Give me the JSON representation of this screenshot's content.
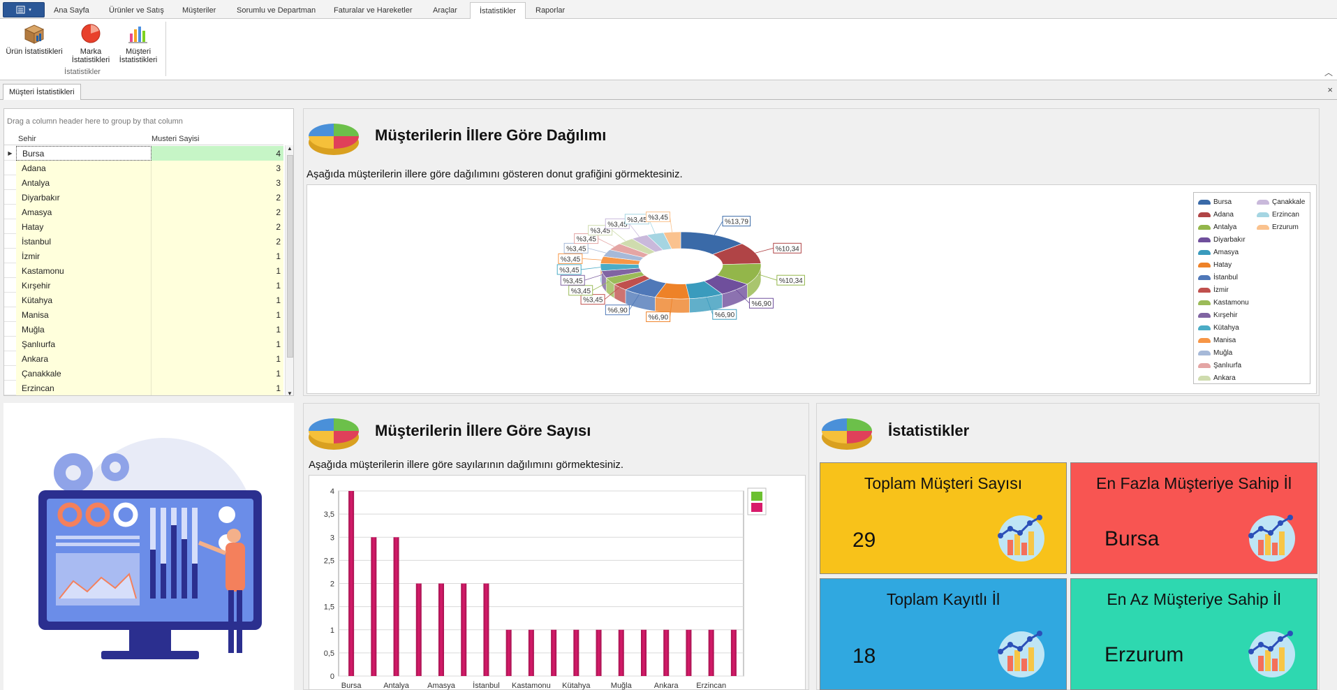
{
  "ribbon": {
    "tabs": [
      "Ana Sayfa",
      "Ürünler ve Satış",
      "Müşteriler",
      "Sorumlu ve Departman",
      "Faturalar ve Hareketler",
      "Araçlar",
      "İstatistikler",
      "Raporlar"
    ],
    "active_tab": "İstatistikler",
    "buttons": [
      {
        "label1": "Ürün İstatistikleri",
        "label2": ""
      },
      {
        "label1": "Marka",
        "label2": "İstatistikleri"
      },
      {
        "label1": "Müşteri",
        "label2": "İstatistikleri"
      }
    ],
    "group_label": "İstatistikler"
  },
  "document_tab": "Müşteri İstatistikleri",
  "grid": {
    "group_hint": "Drag a column header here to group by that column",
    "columns": [
      "Sehir",
      "Musteri Sayisi"
    ],
    "rows": [
      {
        "city": "Bursa",
        "count": "4"
      },
      {
        "city": "Adana",
        "count": "3"
      },
      {
        "city": "Antalya",
        "count": "3"
      },
      {
        "city": "Diyarbakır",
        "count": "2"
      },
      {
        "city": "Amasya",
        "count": "2"
      },
      {
        "city": "Hatay",
        "count": "2"
      },
      {
        "city": "İstanbul",
        "count": "2"
      },
      {
        "city": "İzmir",
        "count": "1"
      },
      {
        "city": "Kastamonu",
        "count": "1"
      },
      {
        "city": "Kırşehir",
        "count": "1"
      },
      {
        "city": "Kütahya",
        "count": "1"
      },
      {
        "city": "Manisa",
        "count": "1"
      },
      {
        "city": "Muğla",
        "count": "1"
      },
      {
        "city": "Şanlıurfa",
        "count": "1"
      },
      {
        "city": "Ankara",
        "count": "1"
      },
      {
        "city": "Çanakkale",
        "count": "1"
      },
      {
        "city": "Erzincan",
        "count": "1"
      }
    ]
  },
  "donut_panel": {
    "title": "Müşterilerin İllere Göre Dağılımı",
    "subtitle": "Aşağıda müşterilerin illere göre dağılımını gösteren donut grafiğini görmektesiniz.",
    "legend_col1": [
      "Bursa",
      "Adana",
      "Antalya",
      "Diyarbakır",
      "Amasya",
      "Hatay",
      "İstanbul",
      "İzmir",
      "Kastamonu",
      "Kırşehir",
      "Kütahya",
      "Manisa",
      "Muğla",
      "Şanlıurfa",
      "Ankara"
    ],
    "legend_col2": [
      "Çanakkale",
      "Erzincan",
      "Erzurum"
    ]
  },
  "bar_panel": {
    "title": "Müşterilerin İllere Göre Sayısı",
    "subtitle": "Aşağıda müşterilerin illere göre sayılarının dağılımını görmektesiniz."
  },
  "stats_panel": {
    "title": "İstatistikler",
    "cards": [
      {
        "title": "Toplam Müşteri Sayısı",
        "value": "29",
        "color": "#f8c21a"
      },
      {
        "title": "En Fazla Müşteriye Sahip İl",
        "value": "Bursa",
        "color": "#f85552"
      },
      {
        "title": "Toplam Kayıtlı İl",
        "value": "18",
        "color": "#30a8e0"
      },
      {
        "title": "En Az Müşteriye Sahip İl",
        "value": "Erzurum",
        "color": "#2ed8b0"
      }
    ]
  },
  "chart_data": [
    {
      "type": "pie",
      "variant": "donut-3d",
      "categories": [
        "Bursa",
        "Adana",
        "Antalya",
        "Diyarbakır",
        "Amasya",
        "Hatay",
        "İstanbul",
        "İzmir",
        "Kastamonu",
        "Kırşehir",
        "Kütahya",
        "Manisa",
        "Muğla",
        "Şanlıurfa",
        "Ankara",
        "Çanakkale",
        "Erzincan",
        "Erzurum"
      ],
      "values": [
        13.79,
        10.34,
        10.34,
        6.9,
        6.9,
        6.9,
        6.9,
        3.45,
        3.45,
        3.45,
        3.45,
        3.45,
        3.45,
        3.45,
        3.45,
        3.45,
        3.45,
        3.45
      ],
      "labels": [
        "%13,79",
        "%10,34",
        "%10,34",
        "%6,90",
        "%6,90",
        "%6,90",
        "%6,90",
        "%3,45",
        "%3,45",
        "%3,45",
        "%3,45",
        "%3,45",
        "%3,45",
        "%3,45",
        "%3,45",
        "%3,45",
        "%3,45",
        "%3,45"
      ],
      "colors": [
        "#3a6aa8",
        "#b04446",
        "#93b64a",
        "#6f4f9c",
        "#3a9bbd",
        "#ee8228",
        "#4f78b8",
        "#c0504d",
        "#9bbb59",
        "#8064a2",
        "#4bacc6",
        "#f79646",
        "#a6b9d8",
        "#e4a5a4",
        "#cfdcae",
        "#c9b9db",
        "#a5d5e2",
        "#fac28e"
      ],
      "legend": "right",
      "title": ""
    },
    {
      "type": "bar",
      "categories": [
        "Bursa",
        "Adana",
        "Antalya",
        "Diyarbakır",
        "Amasya",
        "Hatay",
        "İstanbul",
        "İzmir",
        "Kastamonu",
        "Kırşehir",
        "Kütahya",
        "Manisa",
        "Muğla",
        "Şanlıurfa",
        "Ankara",
        "Çanakkale",
        "Erzincan",
        "Erzurum"
      ],
      "x_tick_labels": [
        "Bursa",
        "",
        "Antalya",
        "",
        "Amasya",
        "",
        "İstanbul",
        "",
        "Kastamonu",
        "",
        "Kütahya",
        "",
        "Muğla",
        "",
        "Ankara",
        "",
        "Erzincan",
        ""
      ],
      "values": [
        4,
        3,
        3,
        2,
        2,
        2,
        2,
        1,
        1,
        1,
        1,
        1,
        1,
        1,
        1,
        1,
        1,
        1
      ],
      "y_ticks": [
        "0",
        "0,5",
        "1",
        "1,5",
        "2",
        "2,5",
        "3",
        "3,5",
        "4"
      ],
      "ylim": [
        0,
        4
      ],
      "grid": true,
      "legend": "top-right",
      "bar_color": "#d81b6b",
      "title": ""
    }
  ]
}
